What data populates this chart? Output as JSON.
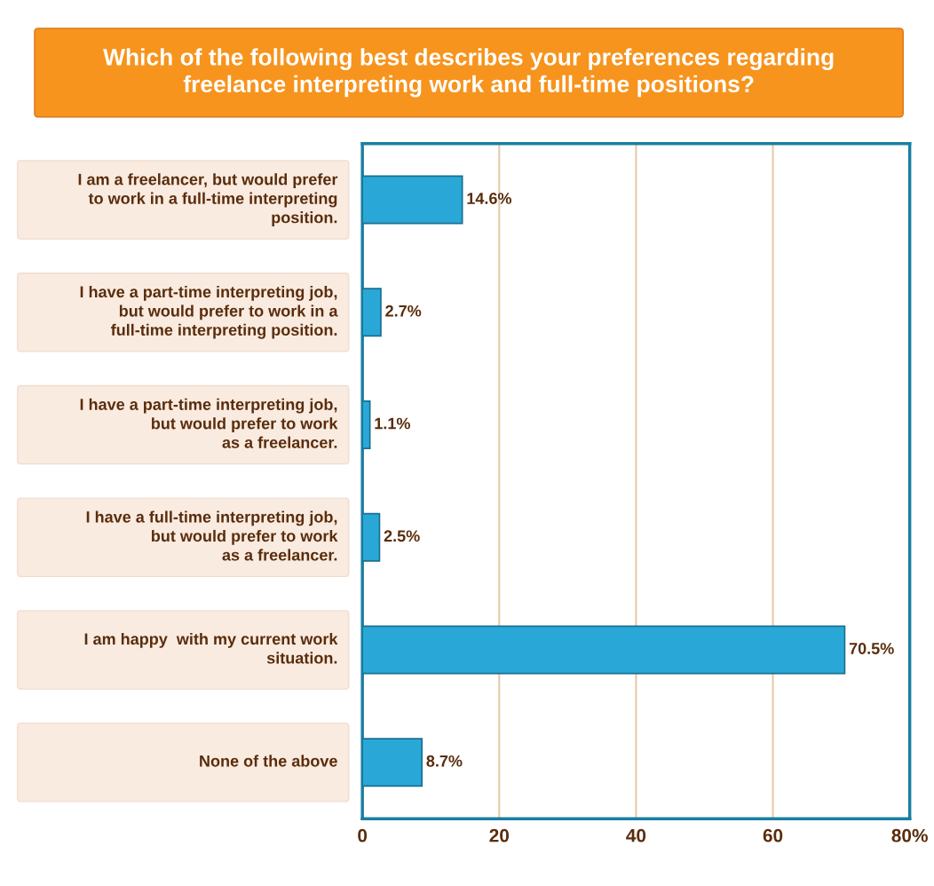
{
  "chart_data": {
    "type": "bar",
    "orientation": "horizontal",
    "title": "Which of the following best describes your preferences regarding\nfreelance interpreting work and full-time positions?",
    "categories": [
      "I am a freelancer, but would prefer\nto work in a full-time interpreting\nposition.",
      "I have a part-time interpreting job,\nbut would prefer to work in a\nfull-time interpreting position.",
      "I have a part-time interpreting job,\nbut would prefer to work\nas a freelancer.",
      "I have a full-time interpreting job,\nbut would prefer to work\nas a freelancer.",
      "I am happy  with my current work\nsituation.",
      "None of the above"
    ],
    "values": [
      14.6,
      2.7,
      1.1,
      2.5,
      70.5,
      8.7
    ],
    "value_labels": [
      "14.6%",
      "2.7%",
      "1.1%",
      "2.5%",
      "70.5%",
      "8.7%"
    ],
    "color": "#29a8d8",
    "xlim": [
      0,
      80
    ],
    "xticks": [
      0,
      20,
      40,
      60,
      {
        "value": 80,
        "label": "80%"
      }
    ],
    "grid": "x"
  }
}
